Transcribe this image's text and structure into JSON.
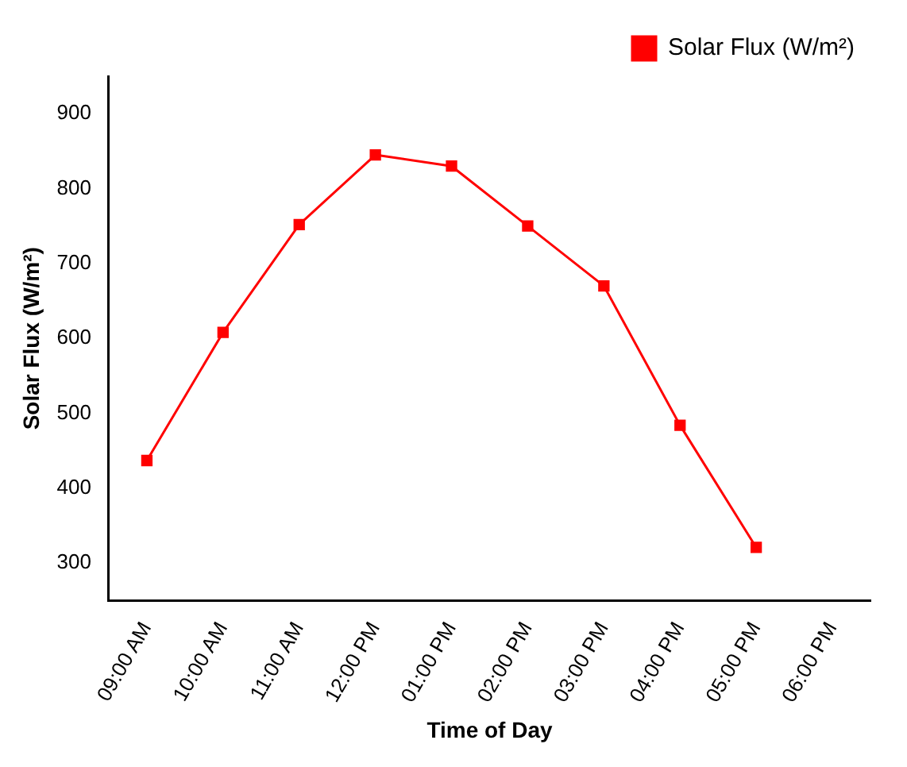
{
  "chart_data": {
    "type": "line",
    "xlabel": "Time of Day",
    "ylabel": "Solar Flux (W/m²)",
    "categories": [
      "09:00 AM",
      "10:00 AM",
      "11:00 AM",
      "12:00 PM",
      "01:00 PM",
      "02:00 PM",
      "03:00 PM",
      "04:00 PM",
      "05:00 PM",
      "06:00 PM"
    ],
    "series": [
      {
        "name": "Solar Flux (W/m²)",
        "color": "#ff0000",
        "values": [
          437,
          608,
          752,
          845,
          830,
          750,
          670,
          484,
          321,
          null
        ]
      }
    ],
    "ylim": [
      250,
      950
    ],
    "yticks": [
      300,
      400,
      500,
      600,
      700,
      800,
      900
    ],
    "grid": false,
    "legend": "top right",
    "marker": "square",
    "line_style": "solid"
  }
}
